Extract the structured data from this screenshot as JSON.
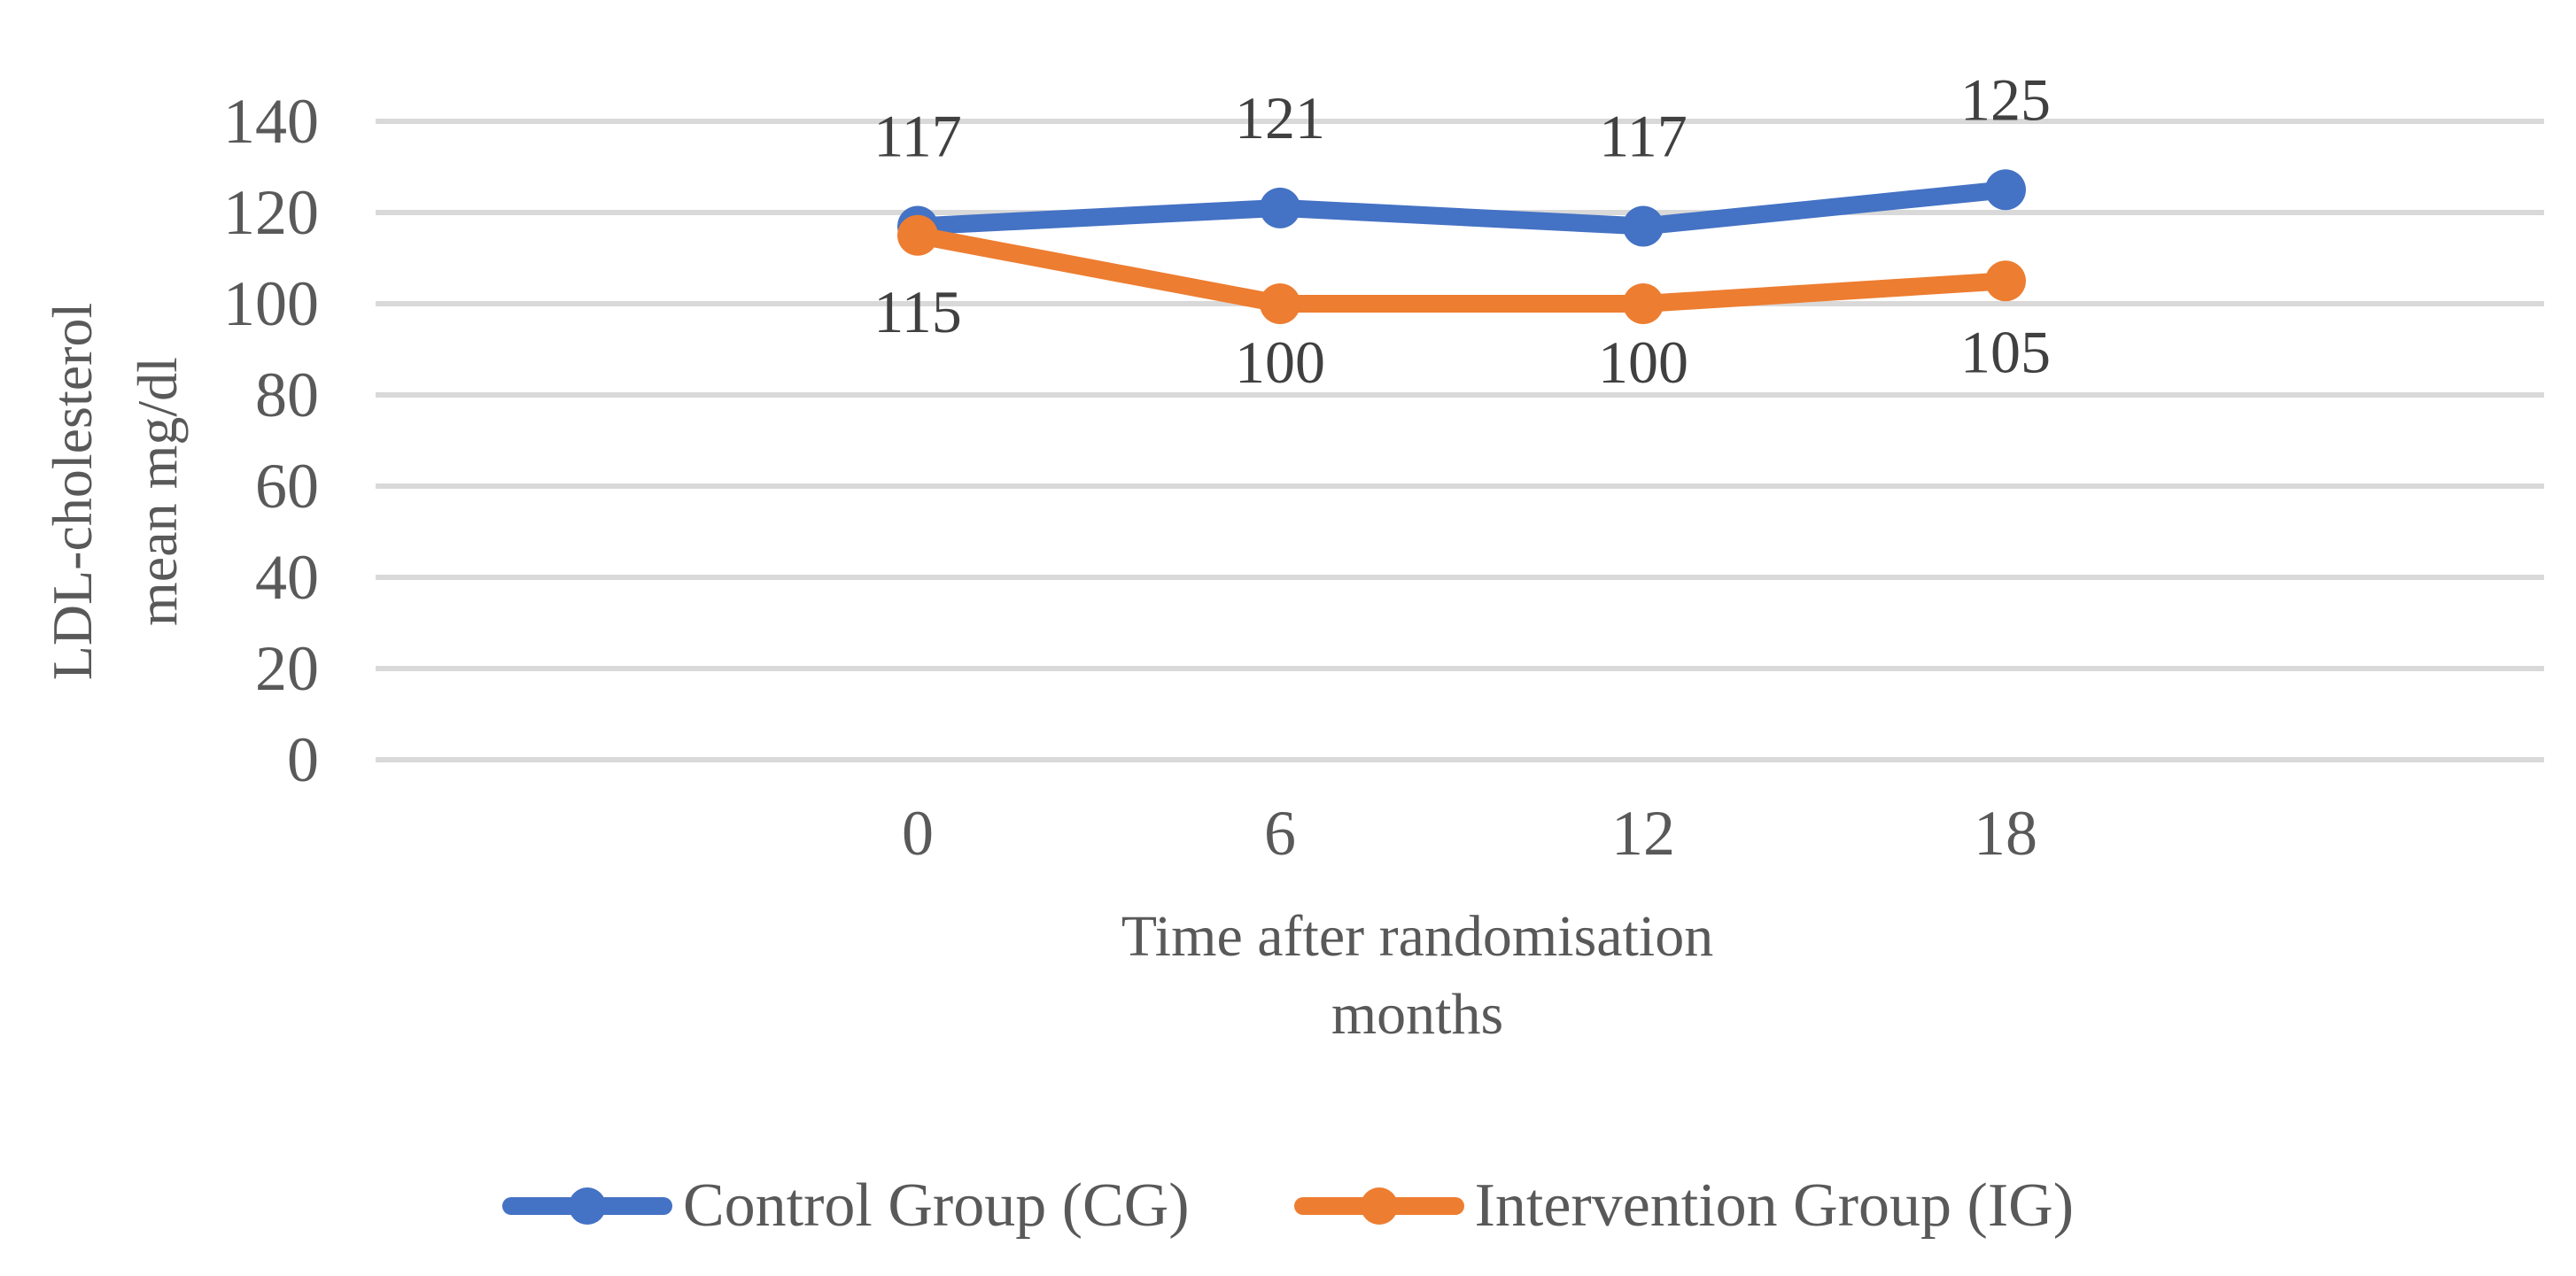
{
  "chart_data": {
    "type": "line",
    "title": "",
    "categories": [
      "0",
      "6",
      "12",
      "18"
    ],
    "series": [
      {
        "name": "Control Group (CG)",
        "values": [
          117,
          121,
          117,
          125
        ],
        "color": "#4472C4",
        "data_labels_position": "above"
      },
      {
        "name": "Intervention Group (IG)",
        "values": [
          115,
          100,
          100,
          105
        ],
        "color": "#ED7D31",
        "data_labels_position": "below"
      }
    ],
    "xlabel_line1": "Time after randomisation",
    "xlabel_line2": "months",
    "ylabel_line1": "LDL-cholesterol",
    "ylabel_line2": "mean mg/dl",
    "y_ticks": [
      140,
      120,
      100,
      80,
      60,
      40,
      20,
      0
    ],
    "ylim": [
      0,
      140
    ],
    "grid": "horizontal",
    "legend_position": "bottom",
    "marker": "circle"
  },
  "colors": {
    "grid": "#D9D9D9",
    "axis_text": "#595959",
    "data_label": "#404040",
    "background": "#FFFFFF"
  }
}
